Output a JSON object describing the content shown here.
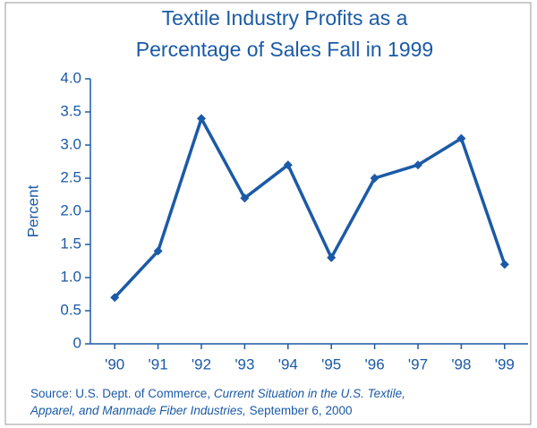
{
  "chart_data": {
    "type": "line",
    "title": [
      "Textile Industry Profits as a",
      "Percentage of Sales Fall in 1999"
    ],
    "ylabel": "Percent",
    "categories": [
      "'90",
      "'91",
      "'92",
      "'93",
      "'94",
      "'95",
      "'96",
      "'97",
      "'98",
      "'99"
    ],
    "values": [
      0.7,
      1.4,
      3.4,
      2.2,
      2.7,
      1.3,
      2.5,
      2.7,
      3.1,
      1.2
    ],
    "color": "#1b5aa6",
    "ylim": [
      0,
      4
    ],
    "yticks": [
      0,
      0.5,
      {
        "value": 1,
        "label": "1.0"
      },
      1.5,
      {
        "value": 2,
        "label": "2.0"
      },
      2.5,
      {
        "value": 3,
        "label": "3.0"
      },
      3.5,
      {
        "value": 4,
        "label": "4.0"
      }
    ],
    "grid": false,
    "source": [
      "Source: U.S. Dept. of Commerce, ",
      "Current Situation in the U.S. Textile,",
      "Apparel, and Manmade Fiber Industries,",
      " September 6, 2000"
    ]
  }
}
